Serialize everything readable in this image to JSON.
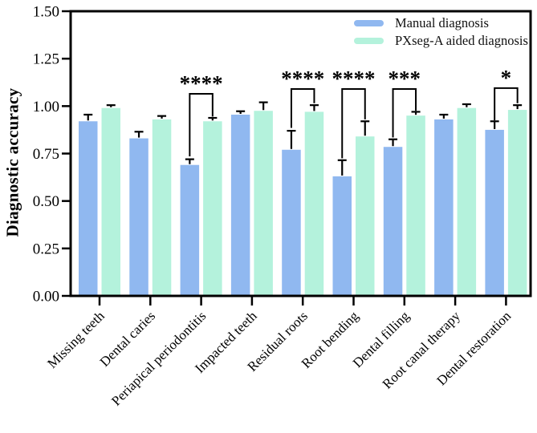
{
  "chart_data": {
    "type": "bar",
    "title": "",
    "ylabel": "Diagnostic accuracy",
    "xlabel": "",
    "ylim": [
      0,
      1.5
    ],
    "yticks": [
      0,
      0.25,
      0.5,
      0.75,
      1,
      1.25,
      1.5
    ],
    "ytick_labels": [
      "0.00",
      "0.25",
      "0.50",
      "0.75",
      "1.00",
      "1.25",
      "1.50"
    ],
    "grid": false,
    "legend_position": "top-right-inside",
    "categories": [
      "Missing teeth",
      "Dental caries",
      "Periapical periodontitis",
      "Impacted teeth",
      "Residual roots",
      "Root bending",
      "Dental filling",
      "Root canal therapy",
      "Dental restoration"
    ],
    "series": [
      {
        "name": "Manual diagnosis",
        "color": "#90B8F0",
        "values": [
          0.92,
          0.83,
          0.69,
          0.955,
          0.77,
          0.63,
          0.785,
          0.93,
          0.875
        ],
        "errors": [
          0.035,
          0.035,
          0.03,
          0.018,
          0.1,
          0.085,
          0.04,
          0.025,
          0.045
        ]
      },
      {
        "name": "PXseg-A aided diagnosis",
        "color": "#B4F2DC",
        "values": [
          0.99,
          0.93,
          0.92,
          0.975,
          0.97,
          0.84,
          0.95,
          0.99,
          0.98
        ],
        "errors": [
          0.015,
          0.018,
          0.018,
          0.045,
          0.035,
          0.08,
          0.02,
          0.02,
          0.025
        ]
      }
    ],
    "significance": [
      {
        "index": 2,
        "category": "Periapical periodontitis",
        "stars": "****",
        "top": 1.065,
        "left_drop": 0.735,
        "right_drop": 0.945
      },
      {
        "index": 4,
        "category": "Residual roots",
        "stars": "****",
        "top": 1.09,
        "left_drop": 0.885,
        "right_drop": 1.015
      },
      {
        "index": 5,
        "category": "Root bending",
        "stars": "****",
        "top": 1.09,
        "left_drop": 0.725,
        "right_drop": 0.93
      },
      {
        "index": 6,
        "category": "Dental filling",
        "stars": "***",
        "top": 1.09,
        "left_drop": 0.835,
        "right_drop": 0.975
      },
      {
        "index": 8,
        "category": "Dental restoration",
        "stars": "*",
        "top": 1.095,
        "left_drop": 0.925,
        "right_drop": 1.015
      }
    ],
    "colors": {
      "axis": "#000000",
      "background": "#ffffff",
      "manual_bar": "#90B8F0",
      "aided_bar": "#B4F2DC"
    }
  }
}
